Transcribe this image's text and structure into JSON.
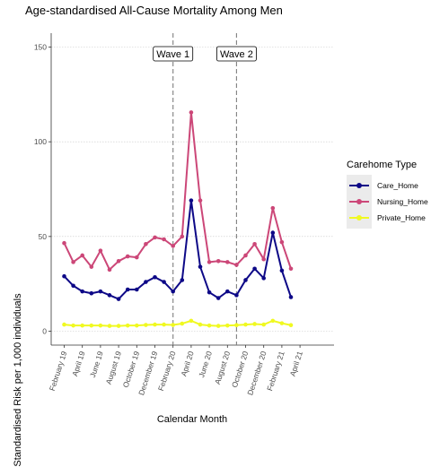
{
  "chart_data": {
    "type": "line",
    "title": "Age-standardised All-Cause Mortality Among Men",
    "xlabel": "Calendar Month",
    "ylabel": "Standardised Risk per 1,000 individuals",
    "ylim": [
      0,
      150
    ],
    "yticks": [
      0,
      50,
      100,
      150
    ],
    "x_range": [
      "2019-01",
      "2021-04"
    ],
    "x_tick_labels": [
      {
        "label": "February 19",
        "month": "2019-02"
      },
      {
        "label": "April 19",
        "month": "2019-04"
      },
      {
        "label": "June 19",
        "month": "2019-06"
      },
      {
        "label": "August 19",
        "month": "2019-08"
      },
      {
        "label": "October 19",
        "month": "2019-10"
      },
      {
        "label": "December 19",
        "month": "2019-12"
      },
      {
        "label": "February 20",
        "month": "2020-02"
      },
      {
        "label": "April 20",
        "month": "2020-04"
      },
      {
        "label": "June 20",
        "month": "2020-06"
      },
      {
        "label": "August 20",
        "month": "2020-08"
      },
      {
        "label": "October 20",
        "month": "2020-10"
      },
      {
        "label": "December 20",
        "month": "2020-12"
      },
      {
        "label": "February 21",
        "month": "2021-02"
      },
      {
        "label": "April 21",
        "month": "2021-04"
      }
    ],
    "x": [
      "2019-02",
      "2019-03",
      "2019-04",
      "2019-05",
      "2019-06",
      "2019-07",
      "2019-08",
      "2019-09",
      "2019-10",
      "2019-11",
      "2019-12",
      "2020-01",
      "2020-02",
      "2020-03",
      "2020-04",
      "2020-05",
      "2020-06",
      "2020-07",
      "2020-08",
      "2020-09",
      "2020-10",
      "2020-11",
      "2020-12",
      "2021-01",
      "2021-02",
      "2021-03"
    ],
    "series": [
      {
        "name": "Care_Home",
        "color": "#0d0887",
        "values": [
          29,
          24,
          21,
          20,
          21,
          19,
          17,
          22,
          22,
          26,
          28.5,
          26,
          21,
          27,
          69,
          34,
          20.5,
          17.5,
          21,
          19,
          27,
          33,
          28,
          52,
          32,
          18
        ]
      },
      {
        "name": "Nursing_Home",
        "color": "#cc4778",
        "values": [
          46.5,
          36.5,
          40,
          34,
          42.5,
          32.5,
          37,
          39.5,
          39,
          46,
          49.5,
          48.5,
          45,
          50,
          115.5,
          69,
          36.5,
          37,
          36.5,
          35,
          40,
          46,
          38,
          65,
          47,
          33
        ]
      },
      {
        "name": "Private_Home",
        "color": "#f0f921",
        "values": [
          3.5,
          3,
          3,
          3,
          3,
          2.8,
          2.8,
          3,
          3,
          3.3,
          3.5,
          3.5,
          3.3,
          4,
          5.5,
          3.5,
          3,
          2.8,
          3,
          3.2,
          3.5,
          3.8,
          3.5,
          5.5,
          4.2,
          3.2
        ]
      }
    ],
    "vlines": [
      {
        "label": "Wave 1",
        "month": "2020-02"
      },
      {
        "label": "Wave 2",
        "month": "2020-09"
      }
    ],
    "legend": {
      "title": "Carehome Type",
      "position": "right"
    },
    "grid": true
  }
}
